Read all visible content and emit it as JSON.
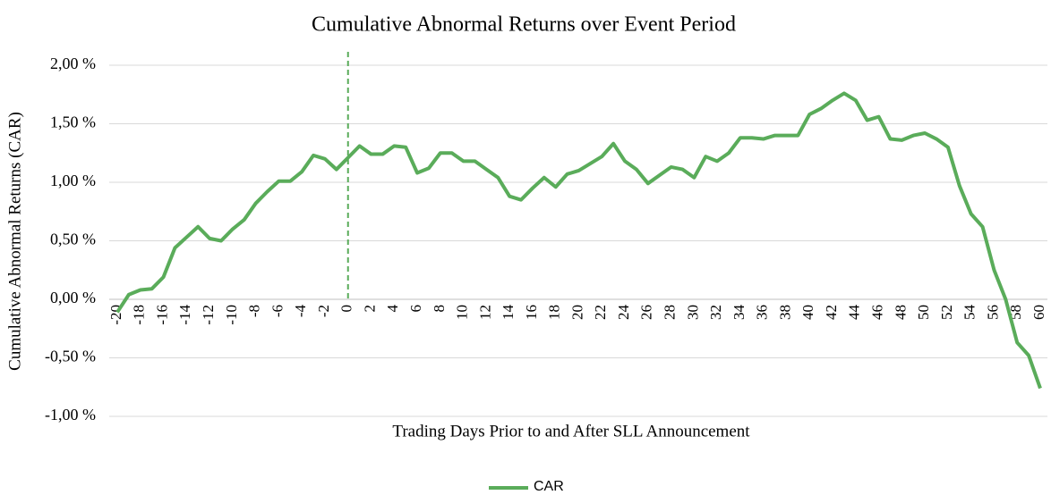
{
  "chart_data": {
    "type": "line",
    "title": "Cumulative Abnormal Returns over Event Period",
    "x_label": "Trading Days Prior to and After SLL Announcement",
    "y_label": "Cumulative Abnormal Returns (CAR)",
    "categories": [
      -20,
      null,
      -18,
      null,
      -16,
      null,
      -14,
      null,
      -12,
      null,
      -10,
      null,
      -8,
      null,
      -6,
      null,
      -4,
      null,
      -2,
      null,
      0,
      null,
      2,
      null,
      4,
      null,
      6,
      null,
      8,
      null,
      10,
      null,
      12,
      null,
      14,
      null,
      16,
      null,
      18,
      null,
      20,
      null,
      22,
      null,
      24,
      null,
      26,
      null,
      28,
      null,
      30,
      null,
      32,
      null,
      34,
      null,
      36,
      null,
      38,
      null,
      40,
      null,
      42,
      null,
      44,
      null,
      46,
      null,
      48,
      null,
      50,
      null,
      52,
      null,
      54,
      null,
      56,
      null,
      58,
      null,
      60
    ],
    "series": [
      {
        "name": "CAR",
        "color": "#5aac5a",
        "values": [
          -0.11,
          0.04,
          0.08,
          0.09,
          0.19,
          0.44,
          0.53,
          0.62,
          0.52,
          0.5,
          0.6,
          0.68,
          0.82,
          0.92,
          1.01,
          1.01,
          1.09,
          1.23,
          1.2,
          1.11,
          1.21,
          1.31,
          1.24,
          1.24,
          1.31,
          1.3,
          1.08,
          1.12,
          1.25,
          1.25,
          1.18,
          1.18,
          1.11,
          1.04,
          0.88,
          0.85,
          0.95,
          1.04,
          0.96,
          1.07,
          1.1,
          1.16,
          1.22,
          1.33,
          1.18,
          1.11,
          0.99,
          1.06,
          1.13,
          1.11,
          1.04,
          1.22,
          1.18,
          1.25,
          1.38,
          1.38,
          1.37,
          1.4,
          1.4,
          1.4,
          1.58,
          1.63,
          1.7,
          1.76,
          1.7,
          1.53,
          1.56,
          1.37,
          1.36,
          1.4,
          1.42,
          1.37,
          1.3,
          0.97,
          0.73,
          0.62,
          0.25,
          0.0,
          -0.37,
          -0.48,
          -0.76
        ]
      }
    ],
    "ylim": [
      -1,
      2
    ],
    "yticks": [
      {
        "value": -1,
        "label": "-1,00 %"
      },
      {
        "value": -0.5,
        "label": "-0,50 %"
      },
      {
        "value": 0,
        "label": "0,00 %"
      },
      {
        "value": 0.5,
        "label": "0,50 %"
      },
      {
        "value": 1,
        "label": "1,00 %"
      },
      {
        "value": 1.5,
        "label": "1,50 %"
      },
      {
        "value": 2,
        "label": "2,00 %"
      }
    ],
    "grid": true,
    "event_day": 0,
    "legend": "bottom"
  }
}
